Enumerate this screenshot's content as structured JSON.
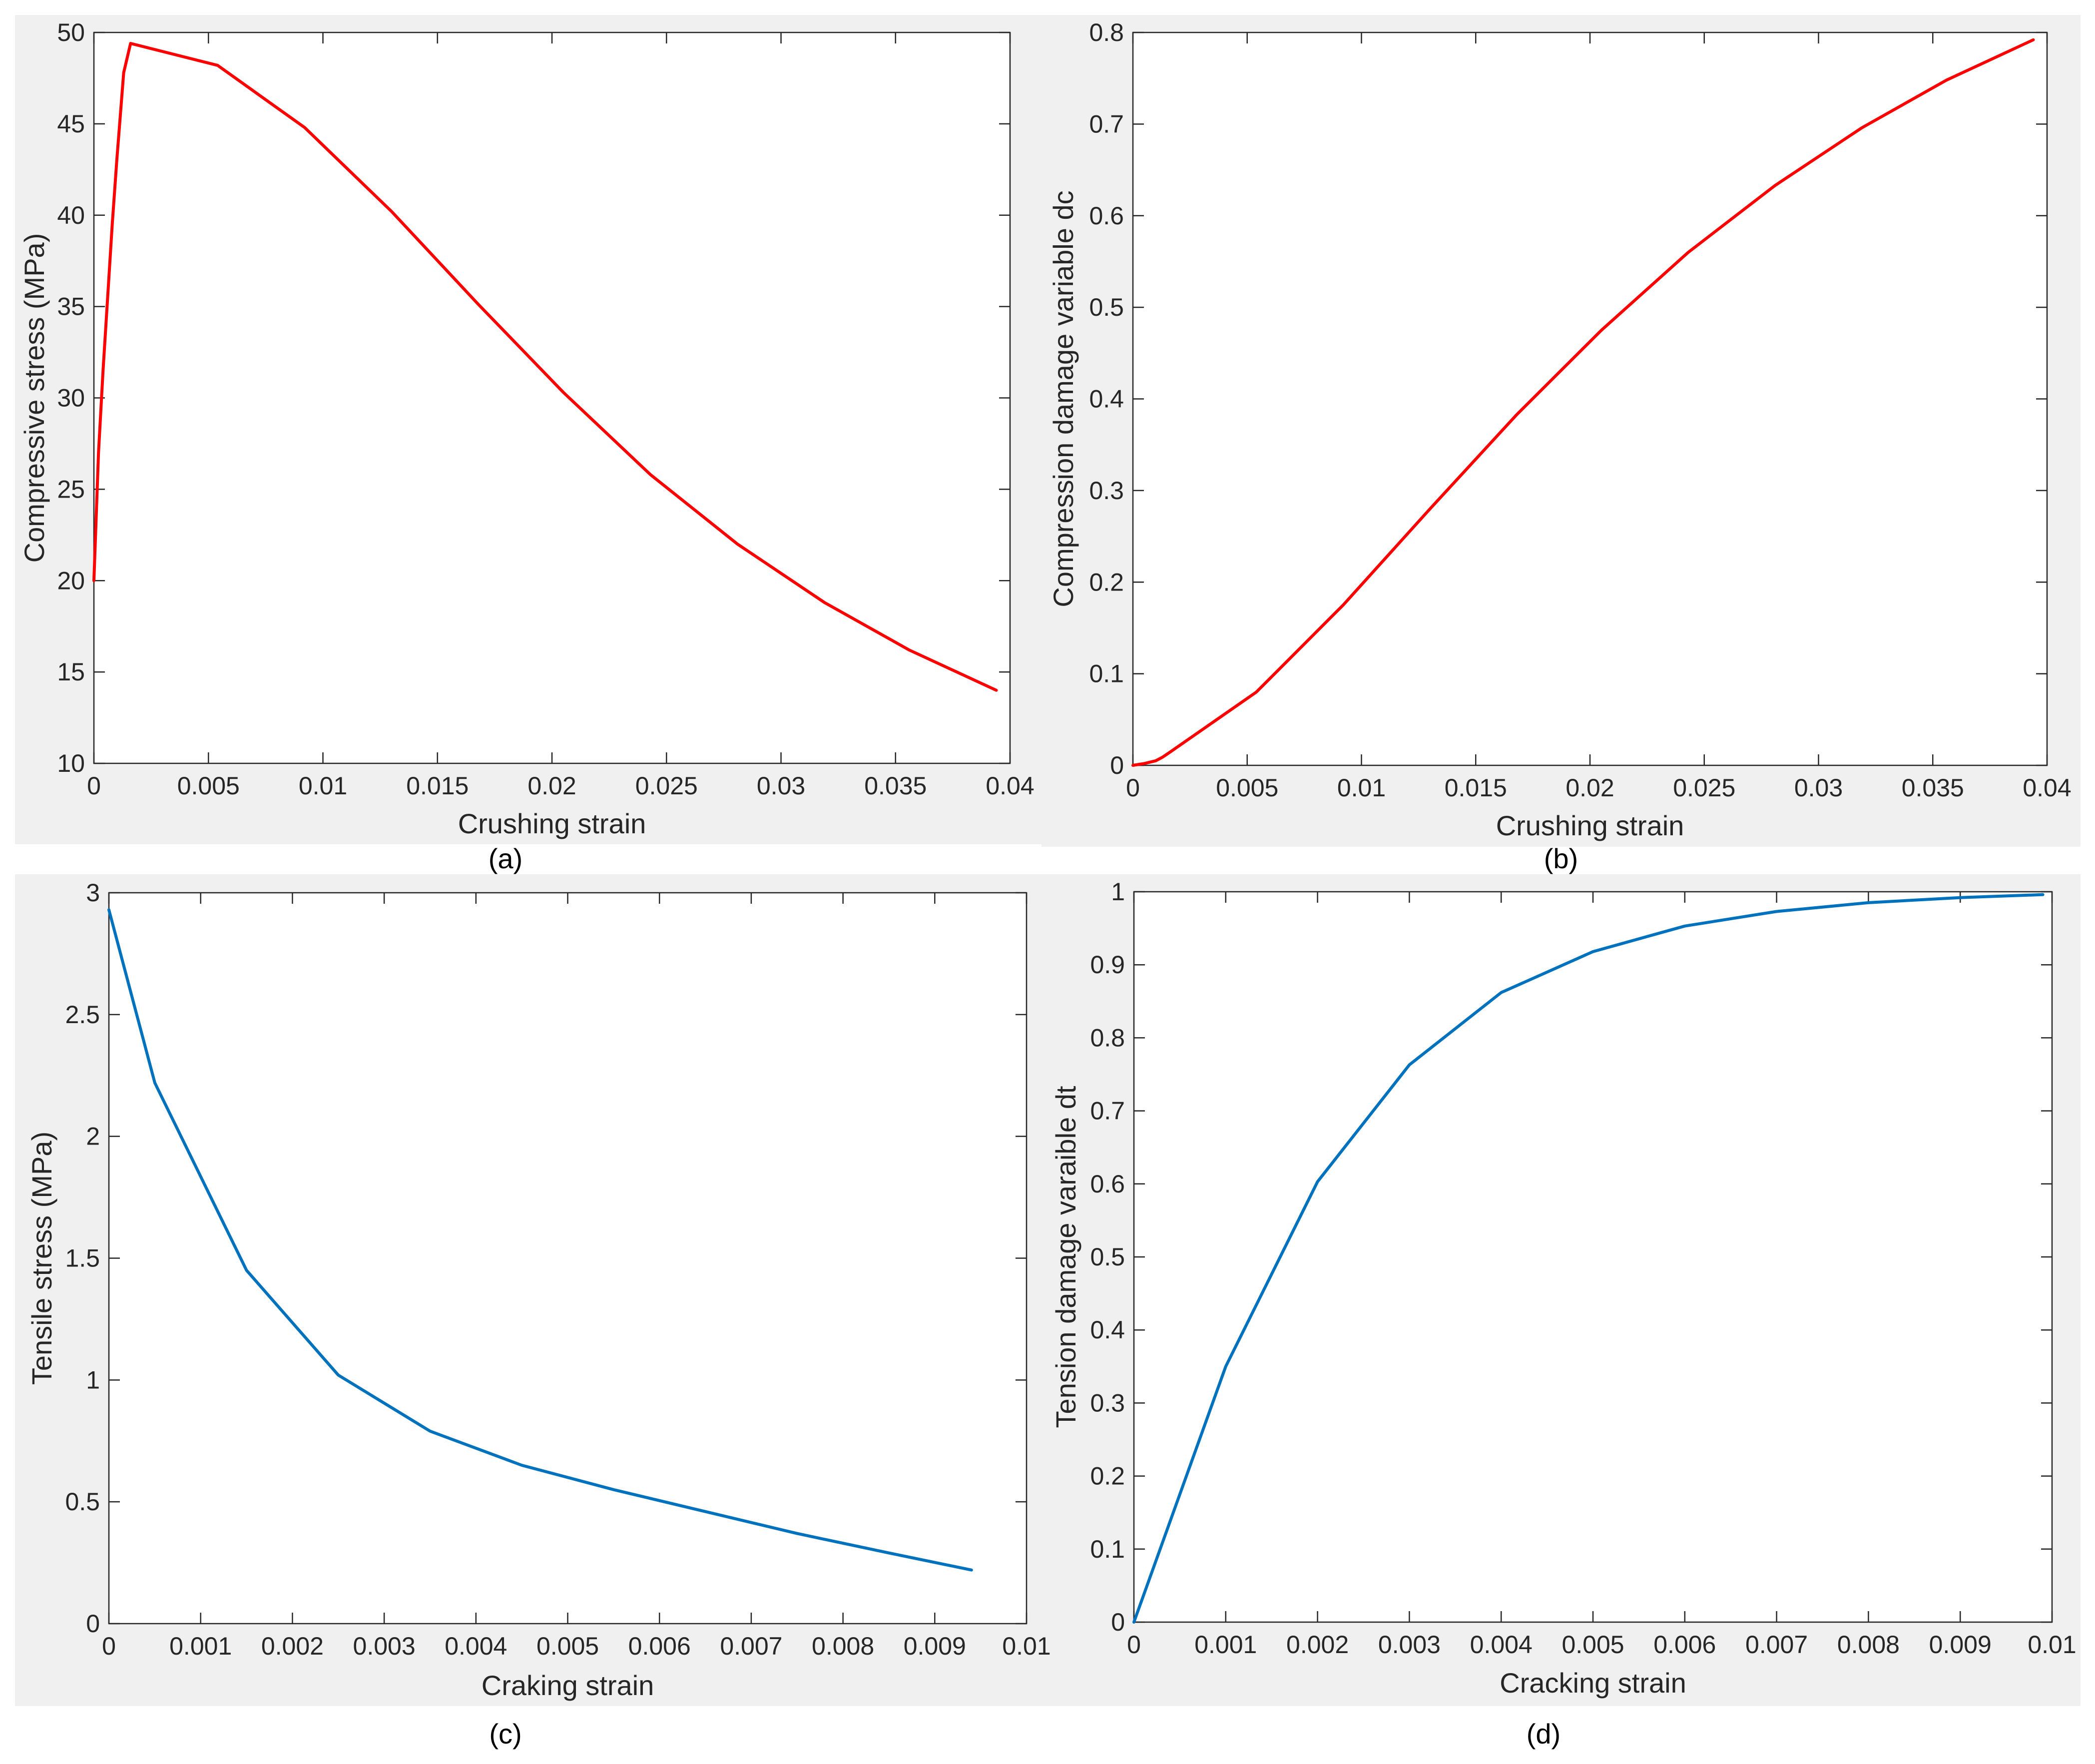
{
  "colors": {
    "red_series": "#ff0000",
    "blue_series": "#0072bd"
  },
  "chart_data": [
    {
      "type": "line",
      "caption": "(a)",
      "xlabel": "Crushing strain",
      "ylabel": "Compressive stress (MPa)",
      "xlim": [
        0,
        0.04
      ],
      "ylim": [
        10,
        50
      ],
      "xticks": [
        0,
        0.005,
        0.01,
        0.015,
        0.02,
        0.025,
        0.03,
        0.035,
        0.04
      ],
      "xtick_labels": [
        "0",
        "0.005",
        "0.01",
        "0.015",
        "0.02",
        "0.025",
        "0.03",
        "0.035",
        "0.04"
      ],
      "yticks": [
        10,
        15,
        20,
        25,
        30,
        35,
        40,
        45,
        50
      ],
      "ytick_labels": [
        "10",
        "15",
        "20",
        "25",
        "30",
        "35",
        "40",
        "45",
        "50"
      ],
      "grid": false,
      "series": [
        {
          "color": "#ff0000",
          "x": [
            0,
            0.0002,
            0.0004,
            0.0006,
            0.0008,
            0.001,
            0.0013,
            0.0016,
            0.0054,
            0.0092,
            0.013,
            0.0168,
            0.0205,
            0.0243,
            0.0281,
            0.0319,
            0.0356,
            0.0394
          ],
          "y": [
            20,
            27,
            31.5,
            35.5,
            39.5,
            43,
            47.8,
            49.4,
            48.2,
            44.8,
            40.2,
            35.1,
            30.3,
            25.8,
            22,
            18.8,
            16.2,
            14
          ]
        }
      ]
    },
    {
      "type": "line",
      "caption": "(b)",
      "xlabel": "Crushing strain",
      "ylabel": "Compression damage variable dc",
      "xlim": [
        0,
        0.04
      ],
      "ylim": [
        0,
        0.8
      ],
      "xticks": [
        0,
        0.005,
        0.01,
        0.015,
        0.02,
        0.025,
        0.03,
        0.035,
        0.04
      ],
      "xtick_labels": [
        "0",
        "0.005",
        "0.01",
        "0.015",
        "0.02",
        "0.025",
        "0.03",
        "0.035",
        "0.04"
      ],
      "yticks": [
        0,
        0.1,
        0.2,
        0.3,
        0.4,
        0.5,
        0.6,
        0.7,
        0.8
      ],
      "ytick_labels": [
        "0",
        "0.1",
        "0.2",
        "0.3",
        "0.4",
        "0.5",
        "0.6",
        "0.7",
        "0.8"
      ],
      "grid": false,
      "series": [
        {
          "color": "#ff0000",
          "x": [
            0,
            0.0005,
            0.001,
            0.0013,
            0.0016,
            0.0054,
            0.0092,
            0.013,
            0.0168,
            0.0205,
            0.0243,
            0.0281,
            0.0319,
            0.0356,
            0.0394
          ],
          "y": [
            0,
            0.002,
            0.005,
            0.009,
            0.014,
            0.08,
            0.175,
            0.28,
            0.383,
            0.475,
            0.56,
            0.633,
            0.696,
            0.748,
            0.792
          ]
        }
      ]
    },
    {
      "type": "line",
      "caption": "(c)",
      "xlabel": "Craking strain",
      "ylabel": "Tensile stress (MPa)",
      "xlim": [
        0,
        0.01
      ],
      "ylim": [
        0,
        3
      ],
      "xticks": [
        0,
        0.001,
        0.002,
        0.003,
        0.004,
        0.005,
        0.006,
        0.007,
        0.008,
        0.009,
        0.01
      ],
      "xtick_labels": [
        "0",
        "0.001",
        "0.002",
        "0.003",
        "0.004",
        "0.005",
        "0.006",
        "0.007",
        "0.008",
        "0.009",
        "0.01"
      ],
      "yticks": [
        0,
        0.5,
        1,
        1.5,
        2,
        2.5,
        3
      ],
      "ytick_labels": [
        "0",
        "0.5",
        "1",
        "1.5",
        "2",
        "2.5",
        "3"
      ],
      "grid": false,
      "series": [
        {
          "color": "#0072bd",
          "x": [
            0,
            0.0005,
            0.0015,
            0.0025,
            0.0035,
            0.0045,
            0.0055,
            0.0065,
            0.0075,
            0.0085,
            0.0094
          ],
          "y": [
            2.93,
            2.22,
            1.45,
            1.02,
            0.79,
            0.65,
            0.55,
            0.46,
            0.37,
            0.29,
            0.22
          ]
        }
      ]
    },
    {
      "type": "line",
      "caption": "(d)",
      "xlabel": "Cracking strain",
      "ylabel": "Tension damage varaible dt",
      "xlim": [
        0,
        0.01
      ],
      "ylim": [
        0,
        1
      ],
      "xticks": [
        0,
        0.001,
        0.002,
        0.003,
        0.004,
        0.005,
        0.006,
        0.007,
        0.008,
        0.009,
        0.01
      ],
      "xtick_labels": [
        "0",
        "0.001",
        "0.002",
        "0.003",
        "0.004",
        "0.005",
        "0.006",
        "0.007",
        "0.008",
        "0.009",
        "0.01"
      ],
      "yticks": [
        0,
        0.1,
        0.2,
        0.3,
        0.4,
        0.5,
        0.6,
        0.7,
        0.8,
        0.9,
        1
      ],
      "ytick_labels": [
        "0",
        "0.1",
        "0.2",
        "0.3",
        "0.4",
        "0.5",
        "0.6",
        "0.7",
        "0.8",
        "0.9",
        "1"
      ],
      "grid": false,
      "series": [
        {
          "color": "#0072bd",
          "x": [
            0,
            0.001,
            0.002,
            0.003,
            0.004,
            0.005,
            0.006,
            0.007,
            0.008,
            0.009,
            0.0099
          ],
          "y": [
            0,
            0.35,
            0.603,
            0.763,
            0.862,
            0.918,
            0.953,
            0.973,
            0.985,
            0.992,
            0.996
          ]
        }
      ]
    }
  ]
}
